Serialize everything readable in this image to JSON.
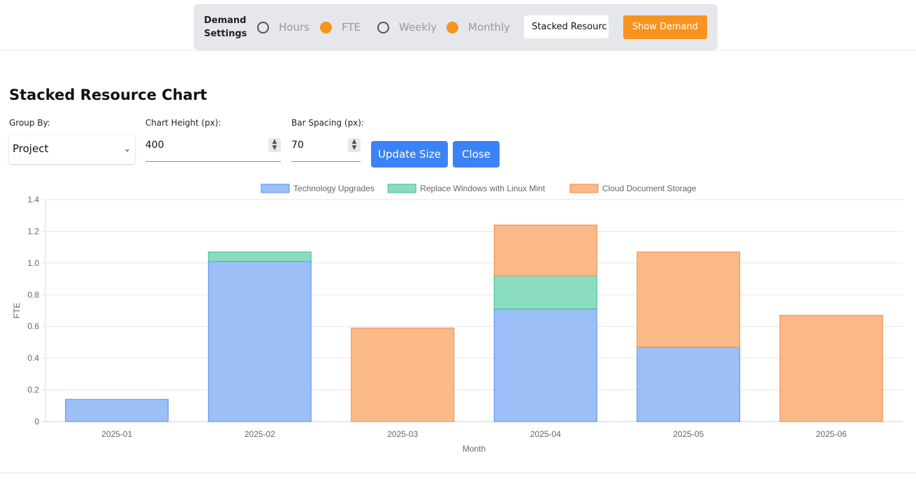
{
  "demand_settings": {
    "label_line1": "Demand",
    "label_line2": "Settings",
    "options": [
      {
        "label": "Hours",
        "selected": false
      },
      {
        "label": "FTE",
        "selected": true
      },
      {
        "label": "Weekly",
        "selected": false
      },
      {
        "label": "Monthly",
        "selected": true
      }
    ],
    "view_select": "Stacked Resourc",
    "show_button": "Show Demand"
  },
  "panel": {
    "title": "Stacked Resource Chart",
    "group_by_label": "Group By:",
    "group_by_value": "Project",
    "chart_height_label": "Chart Height (px):",
    "chart_height_value": "400",
    "bar_spacing_label": "Bar Spacing (px):",
    "bar_spacing_value": "70",
    "update_button": "Update Size",
    "close_button": "Close"
  },
  "colors": {
    "accent_orange": "#f7931e",
    "button_blue": "#3b82f6"
  },
  "chart_data": {
    "type": "bar",
    "stacked": true,
    "categories": [
      "2025-01",
      "2025-02",
      "2025-03",
      "2025-04",
      "2025-05",
      "2025-06"
    ],
    "series": [
      {
        "name": "Technology Upgrades",
        "values": [
          0.14,
          1.01,
          0,
          0.71,
          0.47,
          0
        ],
        "fill": "#9dbff8",
        "stroke": "#5b8ee6"
      },
      {
        "name": "Replace Windows with Linux Mint",
        "values": [
          0,
          0.06,
          0,
          0.21,
          0,
          0
        ],
        "fill": "#8adcc0",
        "stroke": "#3fbf8f"
      },
      {
        "name": "Cloud Document Storage",
        "values": [
          0,
          0,
          0.59,
          0.32,
          0.6,
          0.67
        ],
        "fill": "#fbb988",
        "stroke": "#f08a45"
      }
    ],
    "xlabel": "Month",
    "ylabel": "FTE",
    "ylim": [
      0,
      1.4
    ],
    "yticks": [
      "0",
      "0.2",
      "0.4",
      "0.6",
      "0.8",
      "1.0",
      "1.2",
      "1.4"
    ],
    "grid": true,
    "legend": "top"
  }
}
